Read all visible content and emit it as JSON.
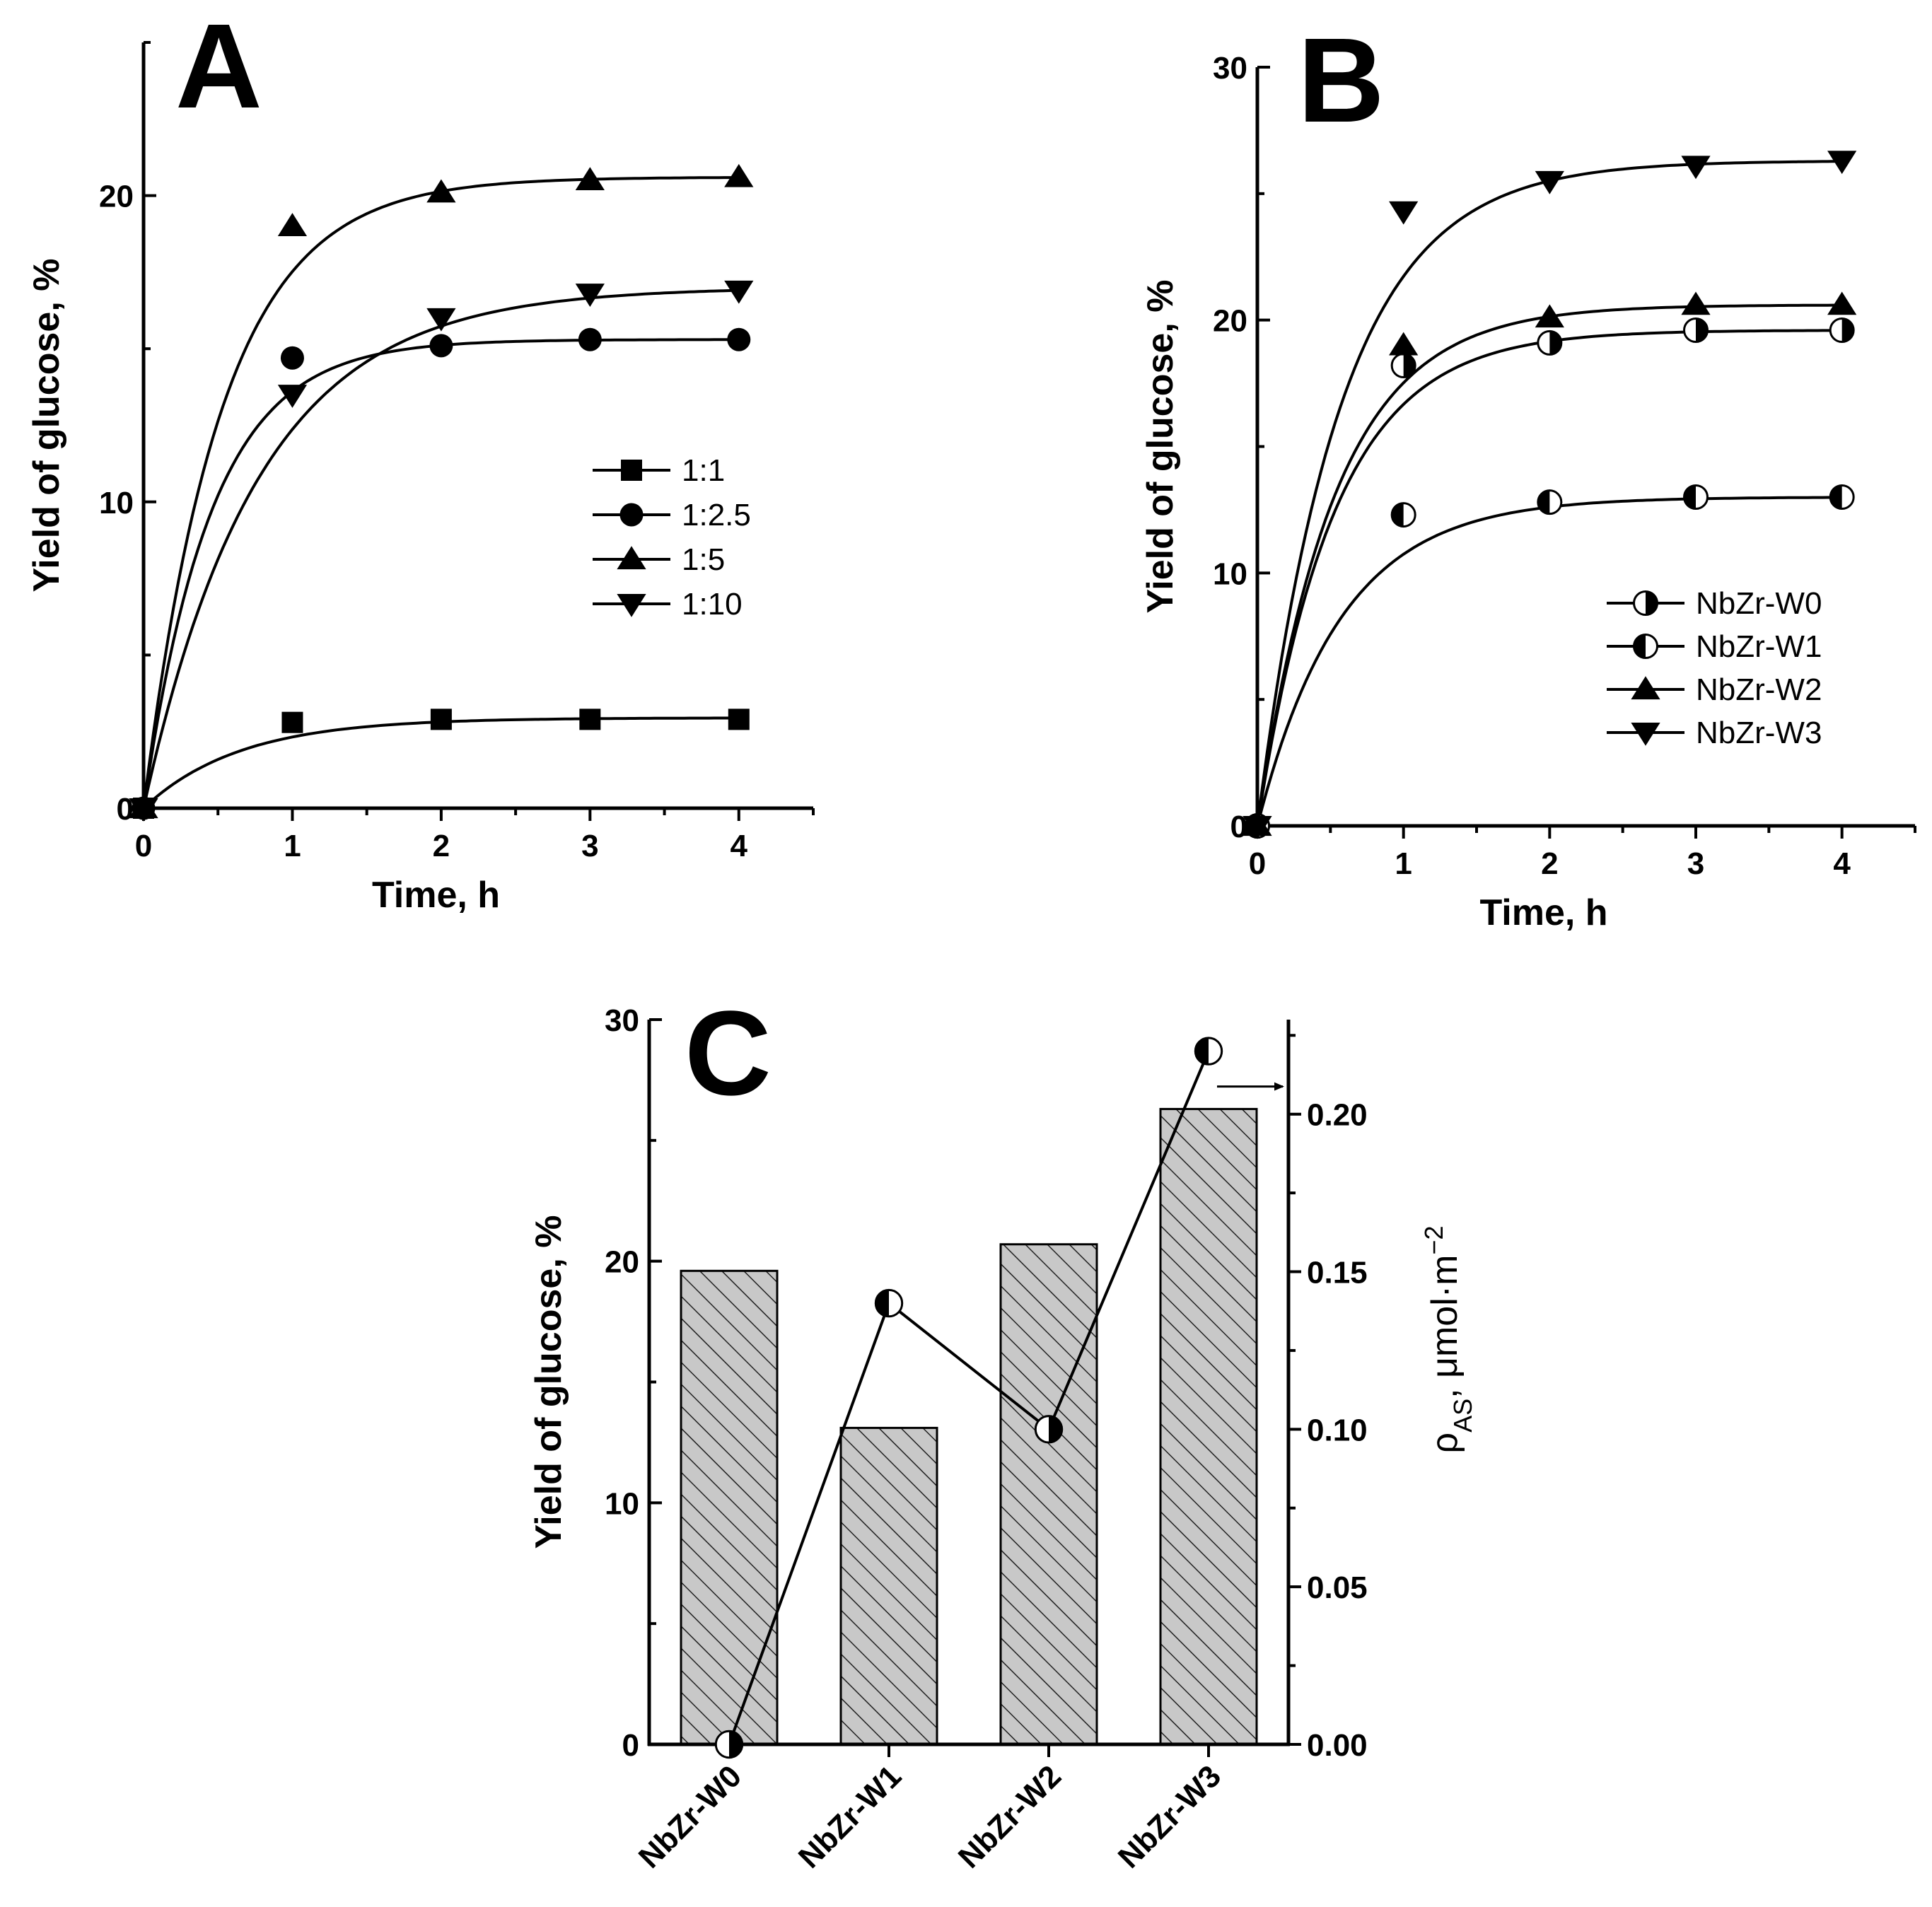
{
  "chart_data": [
    {
      "panel": "A",
      "type": "scatter",
      "xlabel": "Time, h",
      "ylabel": "Yield of glucose, %",
      "xlim": [
        0,
        4.5
      ],
      "ylim": [
        0,
        25
      ],
      "xticks": [
        0,
        1,
        2,
        3,
        4
      ],
      "yticks": [
        0,
        10,
        20
      ],
      "legend_position": "right-middle",
      "series": [
        {
          "name": "1:1",
          "marker": "square",
          "x": [
            0,
            1,
            2,
            3,
            4
          ],
          "y": [
            0,
            2.8,
            2.9,
            2.9,
            2.9
          ],
          "fit": {
            "ymax": 2.95,
            "k": 1.55
          }
        },
        {
          "name": "1:2.5",
          "marker": "circle",
          "x": [
            0,
            1,
            2,
            3,
            4
          ],
          "y": [
            0,
            14.7,
            15.1,
            15.3,
            15.3
          ],
          "fit": {
            "ymax": 15.3,
            "k": 2.2
          }
        },
        {
          "name": "1:5",
          "marker": "triangle-up",
          "x": [
            0,
            1,
            2,
            3,
            4
          ],
          "y": [
            0,
            19.0,
            20.1,
            20.5,
            20.6
          ],
          "fit": {
            "ymax": 20.6,
            "k": 1.9
          }
        },
        {
          "name": "1:10",
          "marker": "triangle-down",
          "x": [
            0,
            1,
            2,
            3,
            4
          ],
          "y": [
            0,
            13.5,
            16.0,
            16.8,
            16.9
          ],
          "fit": {
            "ymax": 17.0,
            "k": 1.3
          }
        }
      ]
    },
    {
      "panel": "B",
      "type": "scatter",
      "xlabel": "Time, h",
      "ylabel": "Yield of glucose, %",
      "xlim": [
        0,
        4.5
      ],
      "ylim": [
        0,
        30
      ],
      "xticks": [
        0,
        1,
        2,
        3,
        4
      ],
      "yticks": [
        0,
        10,
        20,
        30
      ],
      "legend_position": "bottom-right",
      "series": [
        {
          "name": "NbZr-W0",
          "marker": "half-circle-right",
          "x": [
            0,
            1,
            2,
            3,
            4
          ],
          "y": [
            0,
            18.2,
            19.1,
            19.6,
            19.6
          ],
          "fit": {
            "ymax": 19.6,
            "k": 1.9
          }
        },
        {
          "name": "NbZr-W1",
          "marker": "half-circle-left",
          "x": [
            0,
            1,
            2,
            3,
            4
          ],
          "y": [
            0,
            12.3,
            12.8,
            13.0,
            13.0
          ],
          "fit": {
            "ymax": 13.0,
            "k": 1.75
          }
        },
        {
          "name": "NbZr-W2",
          "marker": "triangle-up",
          "x": [
            0,
            1,
            2,
            3,
            4
          ],
          "y": [
            0,
            19.0,
            20.1,
            20.6,
            20.6
          ],
          "fit": {
            "ymax": 20.6,
            "k": 1.9
          }
        },
        {
          "name": "NbZr-W3",
          "marker": "triangle-down",
          "x": [
            0,
            1,
            2,
            3,
            4
          ],
          "y": [
            0,
            24.3,
            25.5,
            26.1,
            26.3
          ],
          "fit": {
            "ymax": 26.3,
            "k": 1.75
          }
        }
      ]
    },
    {
      "panel": "C",
      "type": "bar",
      "categories": [
        "NbZr-W0",
        "NbZr-W1",
        "NbZr-W2",
        "NbZr-W3"
      ],
      "ylabel": "Yield of glucose, %",
      "ylim": [
        0,
        30
      ],
      "yticks": [
        0,
        10,
        20,
        30
      ],
      "values": [
        19.6,
        13.1,
        20.7,
        26.3
      ],
      "y2label": "ρAS, μmol·m⁻²",
      "y2_label_main": "ρ",
      "y2_label_sub": "AS",
      "y2_label_rest": ", μmol·m",
      "y2_label_sup": "−2",
      "y2lim": [
        0,
        0.23
      ],
      "y2ticks": [
        "0.00",
        "0.05",
        "0.10",
        "0.15",
        "0.20"
      ],
      "line_series": {
        "name": "ρAS",
        "marker": "half-circle",
        "values": [
          0.0,
          0.14,
          0.1,
          0.22
        ]
      },
      "arrow_annotation": "points to right axis"
    }
  ]
}
